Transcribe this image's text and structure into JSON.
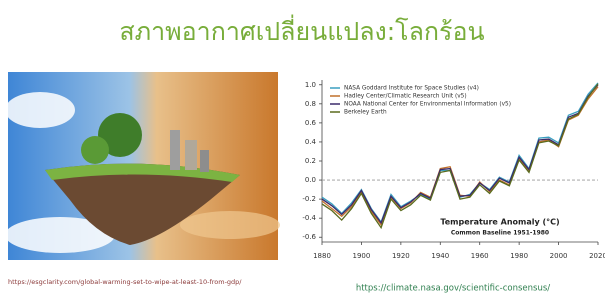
{
  "title": "สภาพอากาศเปลี่ยนแปลง:โลกร้อน",
  "image_source": "https://esgclarity.com/global-warming-set-to-wipe-at-least-10-from-gdp/",
  "chart_source": "https://climate.nasa.gov/scientific-consensus/",
  "chart_data": {
    "type": "line",
    "annotation": "Temperature Anomaly (°C)",
    "subtitle": "Common Baseline 1951-1980",
    "x": [
      1880,
      1885,
      1890,
      1895,
      1900,
      1905,
      1910,
      1915,
      1920,
      1925,
      1930,
      1935,
      1940,
      1945,
      1950,
      1955,
      1960,
      1965,
      1970,
      1975,
      1980,
      1985,
      1990,
      1995,
      2000,
      2005,
      2010,
      2015,
      2020
    ],
    "series": [
      {
        "name": "NASA Goddard Institute for Space Studies (v4)",
        "color": "#3a9fc0",
        "values": [
          -0.18,
          -0.25,
          -0.35,
          -0.24,
          -0.1,
          -0.3,
          -0.44,
          -0.15,
          -0.28,
          -0.22,
          -0.15,
          -0.2,
          0.1,
          0.1,
          -0.18,
          -0.15,
          -0.03,
          -0.1,
          0.03,
          -0.02,
          0.26,
          0.12,
          0.44,
          0.45,
          0.39,
          0.68,
          0.72,
          0.9,
          1.02
        ]
      },
      {
        "name": "Hadley Center/Climatic Research Unit (v5)",
        "color": "#c0702a",
        "values": [
          -0.22,
          -0.3,
          -0.38,
          -0.28,
          -0.12,
          -0.33,
          -0.47,
          -0.18,
          -0.3,
          -0.24,
          -0.13,
          -0.18,
          0.12,
          0.14,
          -0.16,
          -0.17,
          -0.02,
          -0.12,
          0.0,
          -0.05,
          0.22,
          0.1,
          0.4,
          0.42,
          0.35,
          0.63,
          0.68,
          0.85,
          0.98
        ]
      },
      {
        "name": "NOAA National Center for Environmental Information (v5)",
        "color": "#3b2a6b",
        "values": [
          -0.2,
          -0.27,
          -0.36,
          -0.26,
          -0.11,
          -0.31,
          -0.45,
          -0.17,
          -0.29,
          -0.23,
          -0.14,
          -0.19,
          0.11,
          0.12,
          -0.17,
          -0.16,
          -0.03,
          -0.11,
          0.02,
          -0.03,
          0.24,
          0.11,
          0.42,
          0.43,
          0.37,
          0.66,
          0.7,
          0.88,
          1.0
        ]
      },
      {
        "name": "Berkeley Earth",
        "color": "#5a6b1e",
        "values": [
          -0.25,
          -0.32,
          -0.42,
          -0.3,
          -0.14,
          -0.35,
          -0.5,
          -0.2,
          -0.32,
          -0.26,
          -0.16,
          -0.21,
          0.08,
          0.1,
          -0.2,
          -0.18,
          -0.05,
          -0.14,
          -0.01,
          -0.06,
          0.21,
          0.08,
          0.39,
          0.41,
          0.36,
          0.64,
          0.69,
          0.87,
          1.01
        ]
      }
    ],
    "xlim": [
      1880,
      2020
    ],
    "xticks": [
      1880,
      1900,
      1920,
      1940,
      1960,
      1980,
      2000,
      2020
    ],
    "ylim": [
      -0.65,
      1.05
    ],
    "yticks": [
      -0.6,
      -0.4,
      -0.2,
      {
        "value": 0,
        "label": "0.0"
      },
      0.2,
      0.4,
      0.6,
      0.8,
      {
        "value": 1,
        "label": "1.0"
      }
    ],
    "zero_line": true,
    "legend": "top-left"
  }
}
